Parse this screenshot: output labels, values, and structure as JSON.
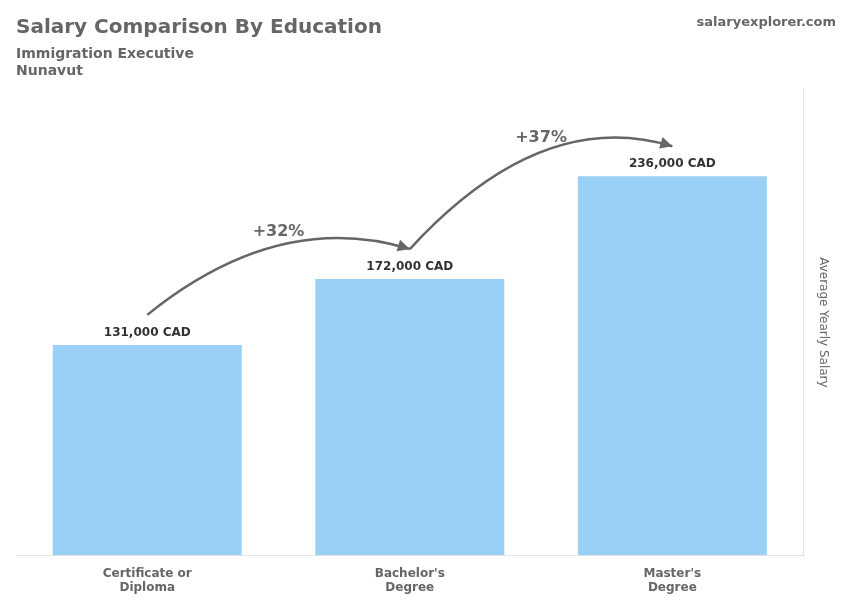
{
  "chart_data": {
    "type": "bar",
    "title": "Salary Comparison By Education",
    "subtitle": [
      "Immigration Executive",
      "Nunavut"
    ],
    "watermark": "salaryexplorer.com",
    "ylabel": "Average Yearly Salary",
    "categories": [
      "Certificate or\nDiploma",
      "Bachelor's\nDegree",
      "Master's\nDegree"
    ],
    "values": [
      131000,
      172000,
      236000
    ],
    "data_labels": true,
    "value_labels": [
      "131,000 CAD",
      "172,000 CAD",
      "236,000 CAD"
    ],
    "arrow_labels": [
      "+32%",
      "+37%"
    ],
    "ylim": [
      0,
      290000
    ],
    "tick_labels": "x",
    "grid": false
  }
}
